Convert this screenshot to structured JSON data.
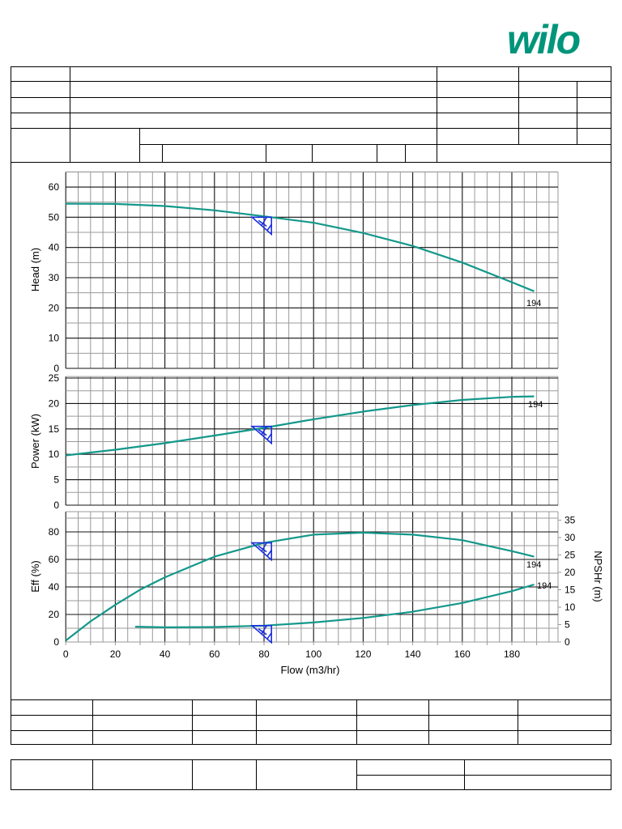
{
  "brand": {
    "name": "wilo",
    "color": "#00957a"
  },
  "header_table": {
    "rows": 6,
    "cells": []
  },
  "colors": {
    "curve": "#13988a",
    "marker": "#1a2ee0",
    "grid_minor": "#9a9a9a",
    "grid_major": "#111111"
  },
  "chart_data": [
    {
      "type": "line",
      "title": "",
      "xlabel": "Flow (m3/hr)",
      "ylabel": "Head (m)",
      "xlim": [
        0,
        198
      ],
      "ylim": [
        0,
        65
      ],
      "yticks": [
        0,
        10,
        20,
        30,
        40,
        50,
        60
      ],
      "grid": true,
      "series": [
        {
          "name": "194",
          "label": "194",
          "x": [
            0,
            20,
            40,
            60,
            80,
            100,
            120,
            140,
            160,
            180,
            189
          ],
          "y": [
            54.5,
            54.4,
            53.7,
            52.3,
            50.3,
            48.2,
            44.8,
            40.5,
            35.0,
            28.5,
            25.5
          ]
        }
      ],
      "duty_point": {
        "x": 83,
        "y": 50
      }
    },
    {
      "type": "line",
      "xlabel": "Flow (m3/hr)",
      "ylabel": "Power (kW)",
      "xlim": [
        0,
        198
      ],
      "ylim": [
        0,
        25
      ],
      "yticks": [
        0,
        5,
        10,
        15,
        20,
        25
      ],
      "grid": true,
      "series": [
        {
          "name": "194",
          "label": "194",
          "x": [
            0,
            20,
            40,
            60,
            80,
            100,
            120,
            140,
            160,
            180,
            189
          ],
          "y": [
            9.8,
            10.9,
            12.2,
            13.7,
            15.2,
            16.9,
            18.4,
            19.7,
            20.7,
            21.3,
            21.4
          ]
        }
      ],
      "duty_point": {
        "x": 83,
        "y": 15.5
      }
    },
    {
      "type": "line",
      "xlabel": "Flow (m3/hr)",
      "ylabel": "Eff (%)",
      "y2label": "NPSHr (m)",
      "xlim": [
        0,
        198
      ],
      "ylim": [
        0,
        95
      ],
      "y2lim": [
        0,
        37
      ],
      "xticks": [
        0,
        20,
        40,
        60,
        80,
        100,
        120,
        140,
        160,
        180
      ],
      "yticks": [
        0,
        20,
        40,
        60,
        80
      ],
      "y2ticks": [
        0,
        5,
        10,
        15,
        20,
        25,
        30,
        35
      ],
      "grid": true,
      "series": [
        {
          "name": "Efficiency 194",
          "label": "194",
          "axis": "left",
          "x": [
            0,
            10,
            20,
            30,
            40,
            60,
            80,
            100,
            120,
            140,
            160,
            180,
            189
          ],
          "y": [
            1,
            15,
            27,
            38,
            47,
            62,
            72,
            78,
            79.5,
            78,
            74,
            66,
            62
          ]
        },
        {
          "name": "NPSHr 194",
          "label": "194",
          "axis": "right",
          "x": [
            28,
            40,
            60,
            80,
            100,
            120,
            140,
            160,
            180,
            189
          ],
          "y": [
            4.4,
            4.2,
            4.3,
            4.7,
            5.6,
            6.9,
            8.7,
            11.2,
            14.6,
            16.5
          ]
        }
      ],
      "duty_points": [
        {
          "x": 83,
          "y": 72
        },
        {
          "x": 83,
          "y2": 4.7
        }
      ]
    }
  ],
  "axes_text": {
    "head_label": "Head (m)",
    "power_label": "Power (kW)",
    "eff_label": "Eff (%)",
    "npsh_label": "NPSHr (m)",
    "flow_label": "Flow (m3/hr)",
    "curve_tag": "194"
  }
}
